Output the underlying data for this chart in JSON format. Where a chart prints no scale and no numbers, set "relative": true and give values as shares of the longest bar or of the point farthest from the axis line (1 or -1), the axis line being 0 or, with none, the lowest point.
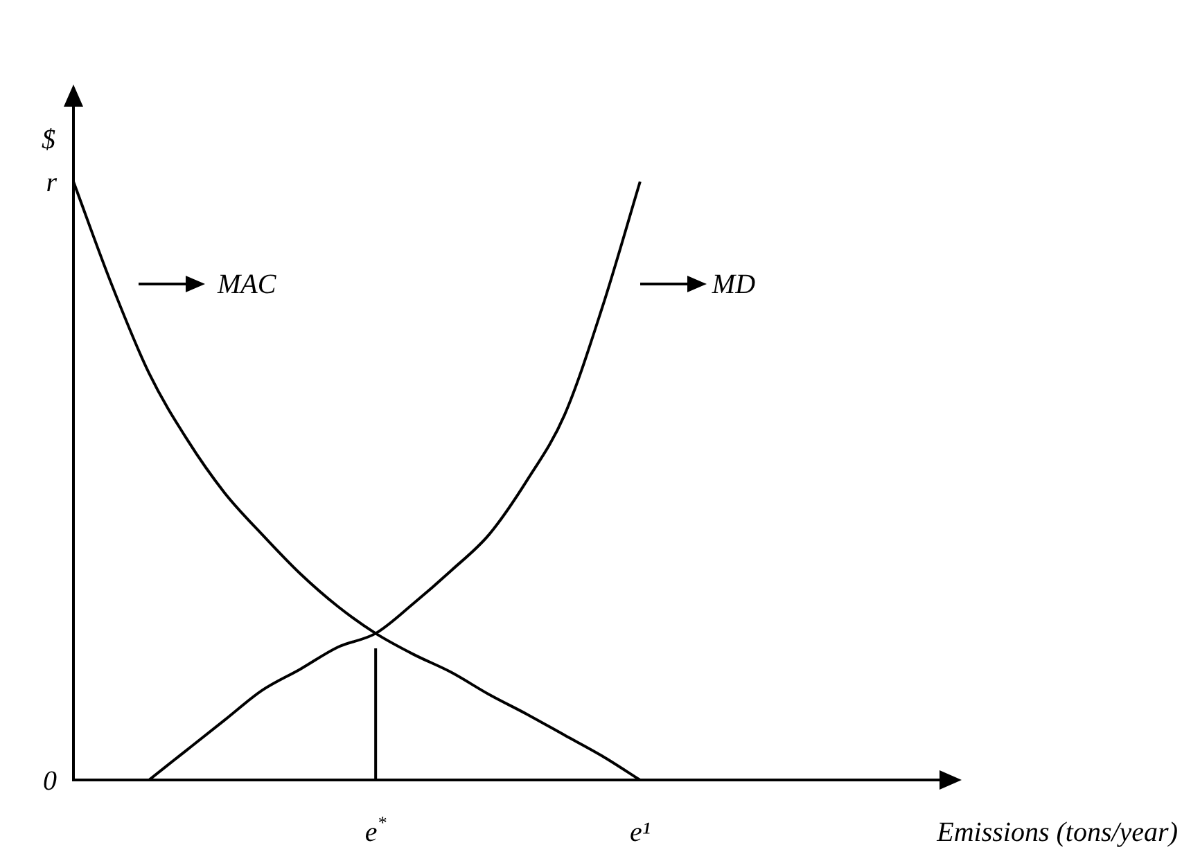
{
  "chart_data": {
    "type": "line",
    "relative": true,
    "xlabel": "Emissions (tons/year)",
    "ylabel": "$",
    "categories": [
      null,
      null,
      null,
      null,
      null,
      null,
      null,
      null,
      "e$^{*}$",
      null,
      null,
      null,
      null,
      null,
      null,
      "e¹",
      null,
      null,
      null,
      null,
      null,
      null,
      null,
      null
    ],
    "annotations": [
      "r",
      "0"
    ],
    "legend": "top",
    "marker": "none",
    "line_style": "solid",
    "series": [
      {
        "name": "MAC",
        "color": "#000000",
        "values": [
          1,
          0.83,
          0.68,
          0.57,
          0.48,
          0.41,
          0.345,
          0.29,
          0.245,
          0.21,
          0.18,
          0.143,
          0.11,
          0.075,
          0.04,
          0,
          null,
          null,
          null,
          null,
          null,
          null,
          null,
          null
        ]
      },
      {
        "name": "MD",
        "color": "#000000",
        "values": [
          null,
          null,
          0,
          0.05,
          0.1,
          0.15,
          0.185,
          0.222,
          0.245,
          0.295,
          0.35,
          0.41,
          0.5,
          0.61,
          0.79,
          1,
          null,
          null,
          null,
          null,
          null,
          null,
          null,
          null
        ]
      },
      {
        "color": "#000000",
        "x": [
          "e$^{*}$",
          "e$^{*}$"
        ],
        "values": [
          0,
          0.22
        ]
      }
    ]
  }
}
